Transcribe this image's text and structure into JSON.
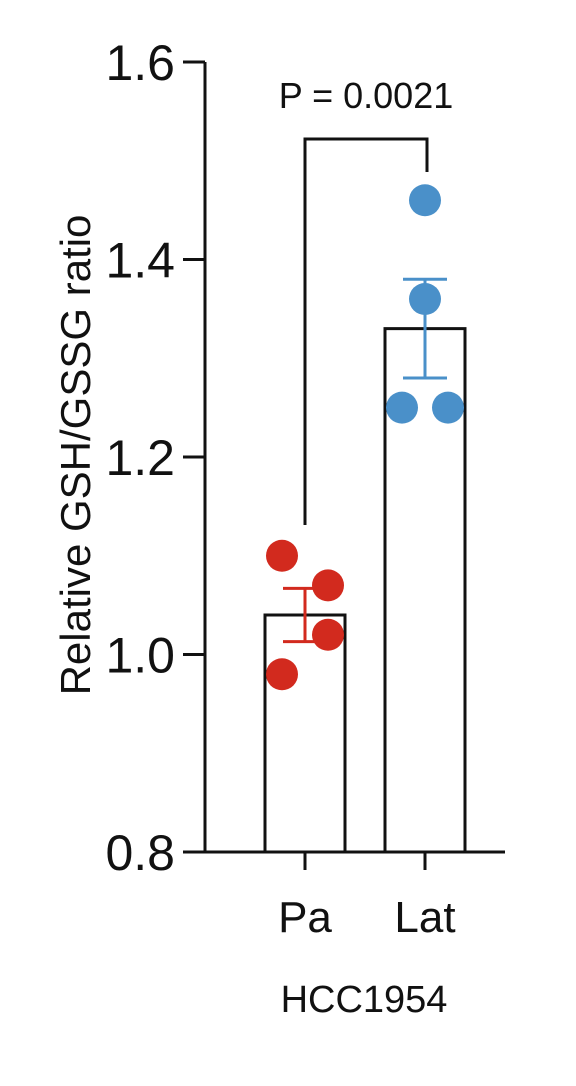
{
  "chart_data": {
    "type": "bar",
    "categories": [
      "Pa",
      "Lat"
    ],
    "values": [
      1.04,
      1.33
    ],
    "error": [
      0.027,
      0.05
    ],
    "points": [
      [
        1.1,
        1.07,
        1.02,
        0.98
      ],
      [
        1.46,
        1.36,
        1.25,
        1.25
      ]
    ],
    "point_colors": [
      "#d22a1e",
      "#4a90c9"
    ],
    "ylabel": "Relative GSH/GSSG ratio",
    "xlabel": "HCC1954",
    "ylim": [
      0.8,
      1.6
    ],
    "yticks": [
      0.8,
      1.0,
      1.2,
      1.4,
      1.6
    ],
    "ytick_labels": [
      "0.8",
      "1.0",
      "1.2",
      "1.4",
      "1.6"
    ],
    "annotation": "P = 0.0021",
    "grid": false
  }
}
